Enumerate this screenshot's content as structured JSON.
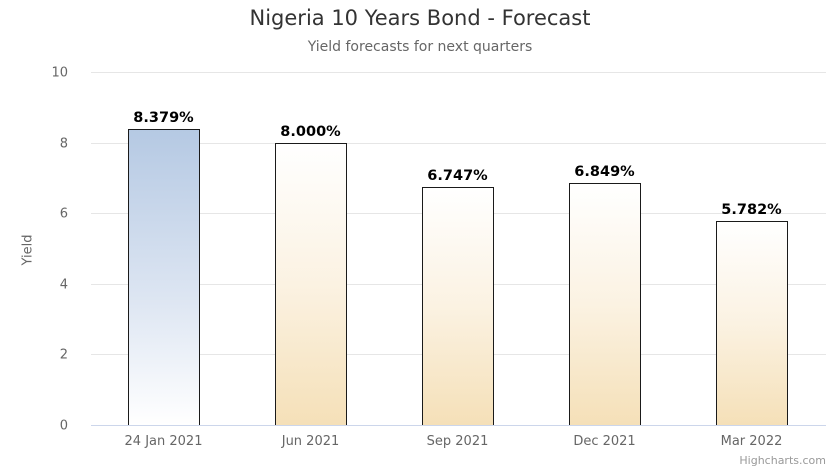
{
  "chart_data": {
    "type": "bar",
    "title": "Nigeria 10 Years Bond - Forecast",
    "subtitle": "Yield forecasts for next quarters",
    "xlabel": "",
    "ylabel": "Yield",
    "categories": [
      "24 Jan 2021",
      "Jun 2021",
      "Sep 2021",
      "Dec 2021",
      "Mar 2022"
    ],
    "values": [
      8.379,
      8.0,
      6.747,
      6.849,
      5.782
    ],
    "data_labels": [
      "8.379%",
      "8.000%",
      "6.747%",
      "6.849%",
      "5.782%"
    ],
    "ylim": [
      0,
      10
    ],
    "yticks": [
      "0",
      "2",
      "4",
      "6",
      "8",
      "10"
    ],
    "grid": true,
    "legend": null,
    "colors": {
      "current": "#b5c9e3",
      "forecast": "#f5e0b8",
      "border": "#1a1a1a"
    }
  },
  "credit": "Highcharts.com"
}
